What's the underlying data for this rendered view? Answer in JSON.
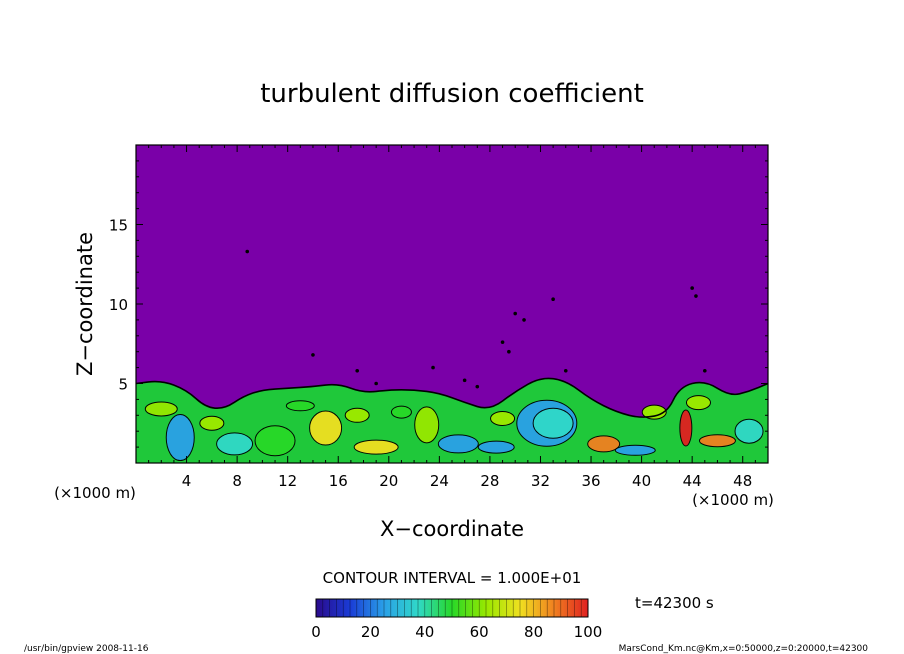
{
  "chart_data": {
    "type": "heatmap",
    "title": "turbulent diffusion coefficient",
    "xlabel": "X−coordinate",
    "ylabel": "Z−coordinate",
    "x_unit_left": "(×1000 m)",
    "x_unit_right": "(×1000 m)",
    "xlim": [
      0,
      50
    ],
    "ylim": [
      0,
      20
    ],
    "x_ticks": [
      4,
      8,
      12,
      16,
      20,
      24,
      28,
      32,
      36,
      40,
      44,
      48
    ],
    "y_ticks": [
      5,
      10,
      15
    ],
    "contour_interval": "CONTOUR INTERVAL = 1.000E+01",
    "time_label": "t=42300  s",
    "colorbar": {
      "range": [
        0,
        100
      ],
      "ticks": [
        0,
        20,
        40,
        60,
        80,
        100
      ],
      "colors": [
        "#2a0a8c",
        "#1a3cd6",
        "#2aa0e8",
        "#30d8c8",
        "#28d828",
        "#98e800",
        "#f0e020",
        "#f08020",
        "#e02020"
      ]
    },
    "background_color": "#7a00a8",
    "boundary_layer_top": [
      [
        0,
        5.0
      ],
      [
        2,
        5.2
      ],
      [
        4,
        4.6
      ],
      [
        5.5,
        3.5
      ],
      [
        7,
        3.4
      ],
      [
        8.5,
        4.2
      ],
      [
        10,
        4.6
      ],
      [
        12,
        4.7
      ],
      [
        14,
        4.8
      ],
      [
        16,
        5.0
      ],
      [
        18,
        4.4
      ],
      [
        20,
        4.6
      ],
      [
        22,
        4.6
      ],
      [
        24,
        4.4
      ],
      [
        26,
        3.8
      ],
      [
        28,
        3.3
      ],
      [
        30,
        4.5
      ],
      [
        32,
        5.4
      ],
      [
        34,
        5.2
      ],
      [
        36,
        4.0
      ],
      [
        38,
        3.2
      ],
      [
        40,
        2.8
      ],
      [
        42,
        3.1
      ],
      [
        43,
        4.8
      ],
      [
        45,
        5.2
      ],
      [
        47,
        4.2
      ],
      [
        48.5,
        4.5
      ],
      [
        50,
        5.0
      ]
    ]
  },
  "footer": {
    "left": "/usr/bin/gpview   2008-11-16",
    "right": "MarsCond_Km.nc@Km,x=0:50000,z=0:20000,t=42300"
  }
}
